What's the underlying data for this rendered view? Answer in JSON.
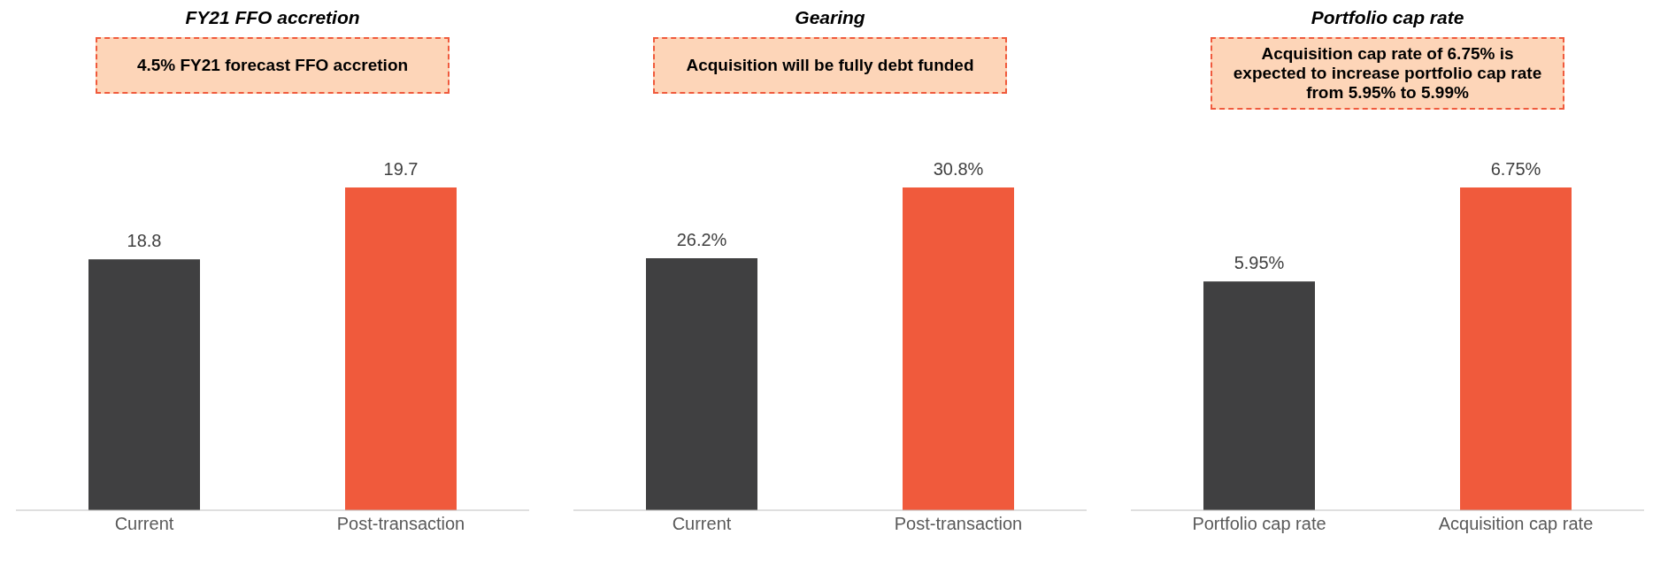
{
  "chart_data": [
    {
      "type": "bar",
      "title": "FY21 FFO accretion",
      "annotations": [
        "4.5% FY21 forecast FFO accretion"
      ],
      "categories": [
        "Current",
        "Post-transaction"
      ],
      "values": [
        18.8,
        19.7
      ],
      "colors": [
        "#404041",
        "#f05a3c"
      ],
      "data_labels": true,
      "ylim": [
        15.66,
        19.7
      ],
      "tick_labels": "x"
    },
    {
      "type": "bar",
      "title": "Gearing",
      "annotations": [
        "Acquisition will be fully debt funded"
      ],
      "categories": [
        "Current",
        "Post-transaction"
      ],
      "values": [
        26.2,
        30.8
      ],
      "colors": [
        "#404041",
        "#f05a3c"
      ],
      "value_labels": [
        "26.2%",
        "30.8%"
      ],
      "ylim": [
        9.8,
        30.8
      ],
      "tick_labels": "x"
    },
    {
      "type": "bar",
      "title": "Portfolio cap rate",
      "annotations": [
        "Acquisition cap rate of 6.75% is expected to increase portfolio cap rate from 5.95% to 5.99%"
      ],
      "categories": [
        "Portfolio cap rate",
        "Acquisition cap rate"
      ],
      "values": [
        5.95,
        6.75
      ],
      "colors": [
        "#404041",
        "#f05a3c"
      ],
      "value_labels": [
        "5.95%",
        "6.75%"
      ],
      "ylim": [
        4.0,
        6.75
      ],
      "tick_labels": "x"
    }
  ]
}
